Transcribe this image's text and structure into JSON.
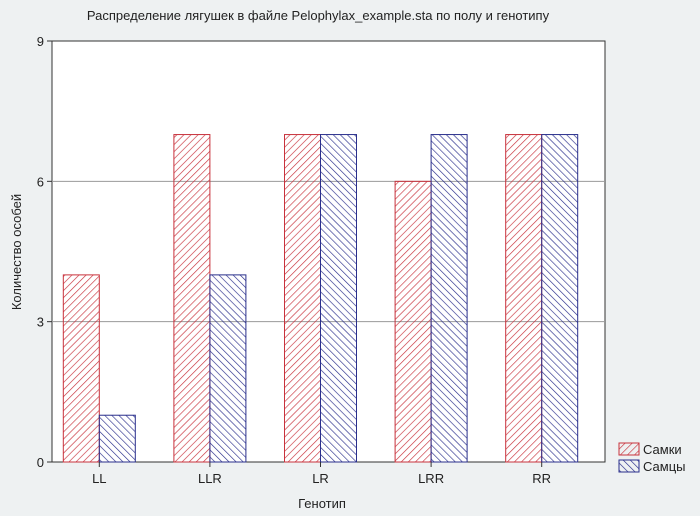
{
  "chart_data": {
    "type": "bar",
    "title": "Распределение лягушек в файле Pelophylax_example.sta по полу и генотипу",
    "xlabel": "Генотип",
    "ylabel": "Количество особей",
    "categories": [
      "LL",
      "LLR",
      "LR",
      "LRR",
      "RR"
    ],
    "series": [
      {
        "name": "Самки",
        "values": [
          4,
          7,
          7,
          6,
          7
        ],
        "color": "#c8323c",
        "pattern": "diagonal-right"
      },
      {
        "name": "Самцы",
        "values": [
          1,
          4,
          7,
          7,
          7
        ],
        "color": "#2a2f8c",
        "pattern": "diagonal-left"
      }
    ],
    "ylim": [
      0,
      9
    ],
    "yticks": [
      0,
      3,
      6,
      9
    ],
    "grid": true,
    "legend_position": "bottom-right",
    "background": "#eef1f2",
    "plot_background": "#ffffff"
  }
}
